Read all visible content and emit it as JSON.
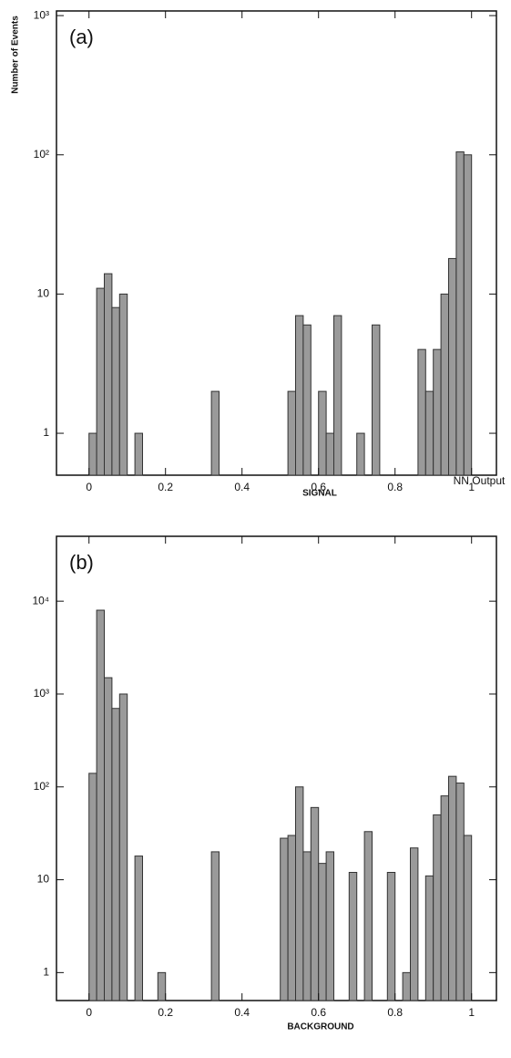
{
  "chart_data": [
    {
      "type": "histogram",
      "panel_label": "(a)",
      "ylabel": "Number of Events",
      "xlabel": "SIGNAL",
      "annotation": "NN Output",
      "log_y": true,
      "color": "#9a9a9a",
      "bins": [
        0,
        0.02,
        0.04,
        0.06,
        0.08,
        0.1,
        0.12,
        0.14,
        0.16,
        0.18,
        0.2,
        0.22,
        0.24,
        0.26,
        0.28,
        0.3,
        0.32,
        0.34,
        0.36,
        0.38,
        0.4,
        0.42,
        0.44,
        0.46,
        0.48,
        0.5,
        0.52,
        0.54,
        0.56,
        0.58,
        0.6,
        0.62,
        0.64,
        0.66,
        0.68,
        0.7,
        0.72,
        0.74,
        0.76,
        0.78,
        0.8,
        0.82,
        0.84,
        0.86,
        0.88,
        0.9,
        0.92,
        0.94,
        0.96,
        0.98,
        1
      ],
      "values": [
        1,
        11,
        14,
        8,
        10,
        0,
        1,
        0,
        0,
        0,
        0,
        0,
        0,
        0,
        0,
        0,
        2,
        0,
        0,
        0,
        0,
        0,
        0,
        0,
        0,
        0,
        2,
        7,
        6,
        0,
        2,
        1,
        7,
        0,
        0,
        1,
        0,
        6,
        0,
        0,
        0,
        0,
        0,
        4,
        2,
        4,
        10,
        18,
        105,
        100
      ],
      "xlim": [
        -0.085,
        1.065
      ],
      "xticks": [
        0,
        0.2,
        0.4,
        0.6,
        0.8,
        1
      ],
      "ylim": [
        0.5,
        1080
      ],
      "yticks": [
        1,
        10,
        {
          "value": 100,
          "label": "10²"
        },
        {
          "value": 1000,
          "label": "10³"
        }
      ]
    },
    {
      "type": "histogram",
      "panel_label": "(b)",
      "xlabel": "BACKGROUND",
      "log_y": true,
      "color": "#9a9a9a",
      "bins": [
        0,
        0.02,
        0.04,
        0.06,
        0.08,
        0.1,
        0.12,
        0.14,
        0.16,
        0.18,
        0.2,
        0.22,
        0.24,
        0.26,
        0.28,
        0.3,
        0.32,
        0.34,
        0.36,
        0.38,
        0.4,
        0.42,
        0.44,
        0.46,
        0.48,
        0.5,
        0.52,
        0.54,
        0.56,
        0.58,
        0.6,
        0.62,
        0.64,
        0.66,
        0.68,
        0.7,
        0.72,
        0.74,
        0.76,
        0.78,
        0.8,
        0.82,
        0.84,
        0.86,
        0.88,
        0.9,
        0.92,
        0.94,
        0.96,
        0.98,
        1
      ],
      "values": [
        140,
        8000,
        1500,
        700,
        1000,
        0,
        18,
        0,
        0,
        1,
        0,
        0,
        0,
        0,
        0,
        0,
        20,
        0,
        0,
        0,
        0,
        0,
        0,
        0,
        0,
        28,
        30,
        100,
        20,
        60,
        15,
        20,
        0,
        0,
        12,
        0,
        33,
        0,
        0,
        12,
        0,
        1,
        22,
        0,
        11,
        50,
        80,
        130,
        110,
        30
      ],
      "xlim": [
        -0.085,
        1.065
      ],
      "xticks": [
        0,
        0.2,
        0.4,
        0.6,
        0.8,
        1
      ],
      "ylim": [
        0.5,
        50000
      ],
      "yticks": [
        1,
        10,
        {
          "value": 100,
          "label": "10²"
        },
        {
          "value": 1000,
          "label": "10³"
        },
        {
          "value": 10000,
          "label": "10⁴"
        }
      ]
    }
  ]
}
